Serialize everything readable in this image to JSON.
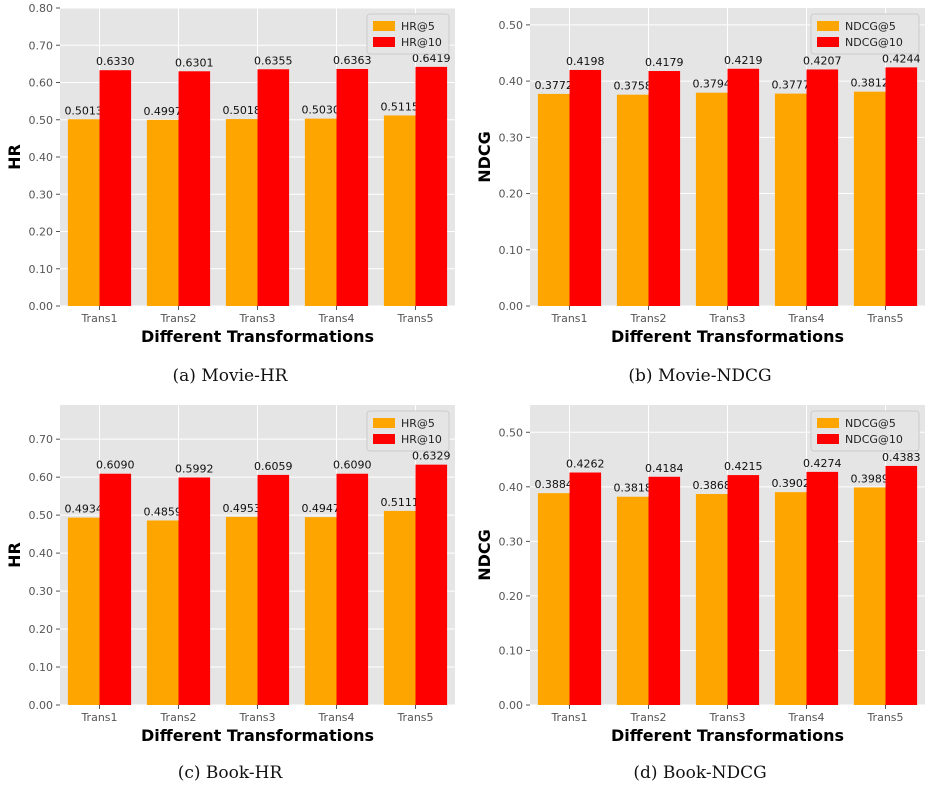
{
  "chart_data": [
    {
      "type": "bar",
      "caption": "(a) Movie-HR",
      "xlabel": "Different Transformations",
      "ylabel": "HR",
      "ylim": [
        0,
        0.8
      ],
      "yticks": [
        0.0,
        0.1,
        0.2,
        0.3,
        0.4,
        0.5,
        0.6,
        0.7,
        0.8
      ],
      "ytick_labels": [
        "0.00",
        "0.10",
        "0.20",
        "0.30",
        "0.40",
        "0.50",
        "0.60",
        "0.70",
        "0.80"
      ],
      "grid": true,
      "legend_position": "top-right",
      "categories": [
        "Trans1",
        "Trans2",
        "Trans3",
        "Trans4",
        "Trans5"
      ],
      "series": [
        {
          "name": "HR@5",
          "color": "#FFA500",
          "values": [
            0.5013,
            0.4997,
            0.5018,
            0.503,
            0.5115
          ],
          "labels": [
            "0.5013",
            "0.4997",
            "0.5018",
            "0.5030",
            "0.5115"
          ]
        },
        {
          "name": "HR@10",
          "color": "#FF0000",
          "values": [
            0.633,
            0.6301,
            0.6355,
            0.6363,
            0.6419
          ],
          "labels": [
            "0.6330",
            "0.6301",
            "0.6355",
            "0.6363",
            "0.6419"
          ]
        }
      ]
    },
    {
      "type": "bar",
      "caption": "(b) Movie-NDCG",
      "xlabel": "Different Transformations",
      "ylabel": "NDCG",
      "ylim": [
        0,
        0.53
      ],
      "yticks": [
        0.0,
        0.1,
        0.2,
        0.3,
        0.4,
        0.5
      ],
      "ytick_labels": [
        "0.00",
        "0.10",
        "0.20",
        "0.30",
        "0.40",
        "0.50"
      ],
      "grid": true,
      "legend_position": "top-right",
      "categories": [
        "Trans1",
        "Trans2",
        "Trans3",
        "Trans4",
        "Trans5"
      ],
      "series": [
        {
          "name": "NDCG@5",
          "color": "#FFA500",
          "values": [
            0.3772,
            0.3758,
            0.3794,
            0.3777,
            0.3812
          ],
          "labels": [
            "0.3772",
            "0.3758",
            "0.3794",
            "0.3777",
            "0.3812"
          ]
        },
        {
          "name": "NDCG@10",
          "color": "#FF0000",
          "values": [
            0.4198,
            0.4179,
            0.4219,
            0.4207,
            0.4244
          ],
          "labels": [
            "0.4198",
            "0.4179",
            "0.4219",
            "0.4207",
            "0.4244"
          ]
        }
      ]
    },
    {
      "type": "bar",
      "caption": "(c) Book-HR",
      "xlabel": "Different Transformations",
      "ylabel": "HR",
      "ylim": [
        0,
        0.79
      ],
      "yticks": [
        0.0,
        0.1,
        0.2,
        0.3,
        0.4,
        0.5,
        0.6,
        0.7
      ],
      "ytick_labels": [
        "0.00",
        "0.10",
        "0.20",
        "0.30",
        "0.40",
        "0.50",
        "0.60",
        "0.70"
      ],
      "grid": true,
      "legend_position": "top-right",
      "categories": [
        "Trans1",
        "Trans2",
        "Trans3",
        "Trans4",
        "Trans5"
      ],
      "series": [
        {
          "name": "HR@5",
          "color": "#FFA500",
          "values": [
            0.4934,
            0.4859,
            0.4953,
            0.4947,
            0.5111
          ],
          "labels": [
            "0.4934",
            "0.4859",
            "0.4953",
            "0.4947",
            "0.5111"
          ]
        },
        {
          "name": "HR@10",
          "color": "#FF0000",
          "values": [
            0.609,
            0.5992,
            0.6059,
            0.609,
            0.6329
          ],
          "labels": [
            "0.6090",
            "0.5992",
            "0.6059",
            "0.6090",
            "0.6329"
          ]
        }
      ]
    },
    {
      "type": "bar",
      "caption": "(d) Book-NDCG",
      "xlabel": "Different Transformations",
      "ylabel": "NDCG",
      "ylim": [
        0,
        0.55
      ],
      "yticks": [
        0.0,
        0.1,
        0.2,
        0.3,
        0.4,
        0.5
      ],
      "ytick_labels": [
        "0.00",
        "0.10",
        "0.20",
        "0.30",
        "0.40",
        "0.50"
      ],
      "grid": true,
      "legend_position": "top-right",
      "categories": [
        "Trans1",
        "Trans2",
        "Trans3",
        "Trans4",
        "Trans5"
      ],
      "series": [
        {
          "name": "NDCG@5",
          "color": "#FFA500",
          "values": [
            0.3884,
            0.3818,
            0.3868,
            0.3902,
            0.3989
          ],
          "labels": [
            "0.3884",
            "0.3818",
            "0.3868",
            "0.3902",
            "0.3989"
          ]
        },
        {
          "name": "NDCG@10",
          "color": "#FF0000",
          "values": [
            0.4262,
            0.4184,
            0.4215,
            0.4274,
            0.4383
          ],
          "labels": [
            "0.4262",
            "0.4184",
            "0.4215",
            "0.4274",
            "0.4383"
          ]
        }
      ]
    }
  ]
}
